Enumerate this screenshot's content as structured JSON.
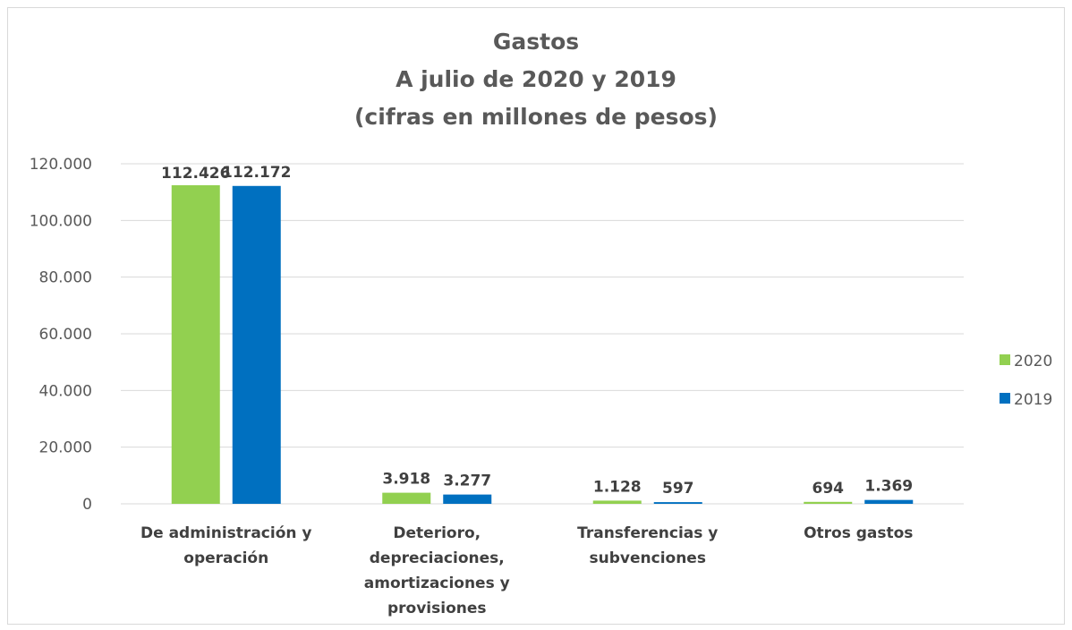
{
  "chart_data": {
    "type": "bar",
    "title_lines": [
      "Gastos",
      "A julio de 2020 y 2019",
      "(cifras en millones de pesos)"
    ],
    "categories": [
      [
        "De administración y",
        "operación"
      ],
      [
        "Deterioro,",
        "depreciaciones,",
        "amortizaciones y",
        "provisiones"
      ],
      [
        "Transferencias y",
        "subvenciones"
      ],
      [
        "Otros gastos"
      ]
    ],
    "series": [
      {
        "name": "2020",
        "color": "#92d050",
        "values": [
          112426,
          3918,
          1128,
          694
        ],
        "labels": [
          "112.426",
          "3.918",
          "1.128",
          "694"
        ]
      },
      {
        "name": "2019",
        "color": "#0070c0",
        "values": [
          112172,
          3277,
          597,
          1369
        ],
        "labels": [
          "112.172",
          "3.277",
          "597",
          "1.369"
        ]
      }
    ],
    "ylim": [
      0,
      120000
    ],
    "yticks": [
      0,
      20000,
      40000,
      60000,
      80000,
      100000,
      120000
    ],
    "ytick_labels": [
      "0",
      "20.000",
      "40.000",
      "60.000",
      "80.000",
      "100.000",
      "120.000"
    ],
    "grid": true,
    "legend": "right"
  }
}
